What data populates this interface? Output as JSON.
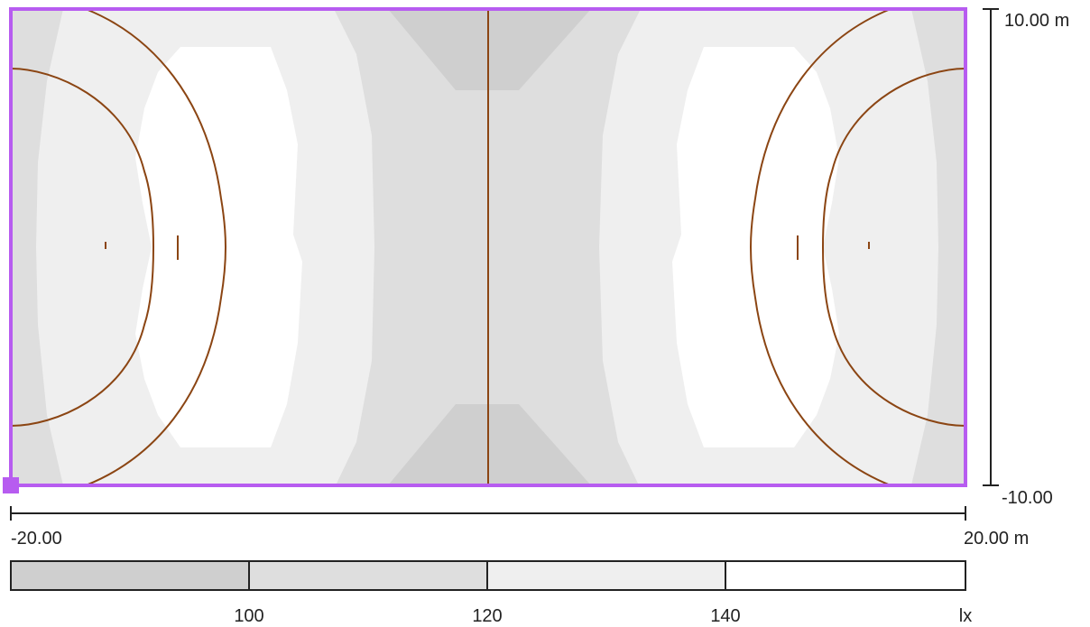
{
  "plan": {
    "x_range": [
      -20,
      20
    ],
    "y_range": [
      -10,
      10
    ],
    "y_max_label": "10.00 m",
    "y_min_label": "-10.00",
    "x_min_label": "-20.00",
    "x_max_label": "20.00 m"
  },
  "legend": {
    "ticks": [
      "100",
      "120",
      "140"
    ],
    "unit": "lx",
    "bands": [
      {
        "color": "#cfcfcf"
      },
      {
        "color": "#dedede"
      },
      {
        "color": "#efefef"
      },
      {
        "color": "#ffffff"
      }
    ]
  },
  "colors": {
    "boundary": "#b75cf0",
    "court_lines": "#8b4513",
    "axis": "#222222",
    "iso_dark": "#cfcfcf",
    "iso_mid": "#dedede",
    "iso_light": "#efefef",
    "iso_white": "#ffffff"
  }
}
